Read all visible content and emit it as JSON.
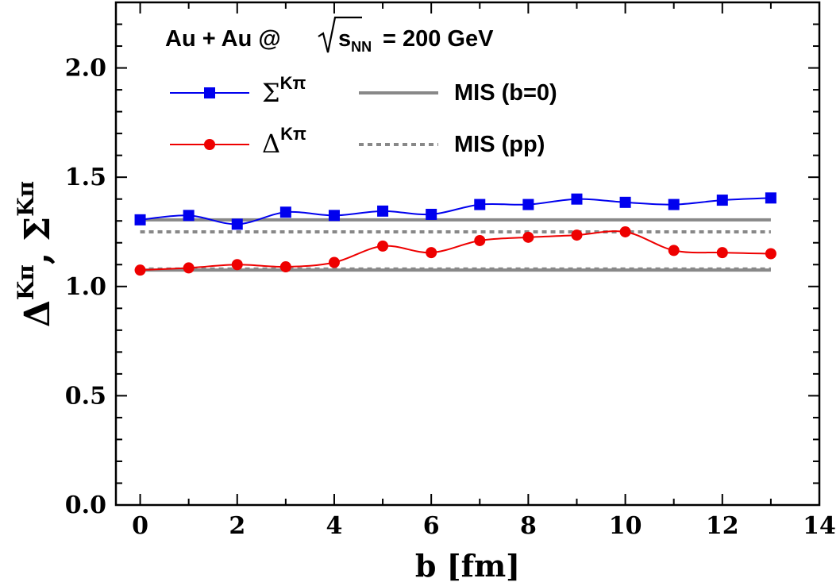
{
  "chart_data": {
    "type": "line",
    "title_parts": {
      "prefix": "Au + Au @ ",
      "sqrt_s": "s",
      "sqrt_sub": "NN",
      "suffix": " = 200 GeV"
    },
    "xlabel": "b [fm]",
    "ylabel": {
      "delta": "Δ",
      "sigma": "Σ",
      "sup": "Kπ",
      "sep": ","
    },
    "xlim": [
      -0.5,
      14
    ],
    "ylim": [
      0,
      2.3
    ],
    "x_ticks": [
      0,
      2,
      4,
      6,
      8,
      10,
      12,
      14
    ],
    "x_tick_labels": [
      "0",
      "2",
      "4",
      "6",
      "8",
      "10",
      "12",
      "14"
    ],
    "y_ticks": [
      0,
      0.5,
      1.0,
      1.5,
      2.0
    ],
    "y_tick_labels": [
      "0.0",
      "0.5",
      "1.0",
      "1.5",
      "2.0"
    ],
    "grid": false,
    "legend_position": "top",
    "series": [
      {
        "name_base": "Σ",
        "name_sup": "Kπ",
        "color": "#0000ee",
        "marker": "square",
        "x": [
          0,
          1,
          2,
          3,
          4,
          5,
          6,
          7,
          8,
          9,
          10,
          11,
          12,
          13
        ],
        "values": [
          1.305,
          1.325,
          1.285,
          1.34,
          1.325,
          1.345,
          1.33,
          1.375,
          1.375,
          1.4,
          1.385,
          1.375,
          1.395,
          1.405
        ]
      },
      {
        "name_base": "Δ",
        "name_sup": "Kπ",
        "color": "#ee0000",
        "marker": "circle",
        "x": [
          0,
          1,
          2,
          3,
          4,
          5,
          6,
          7,
          8,
          9,
          10,
          11,
          12,
          13
        ],
        "values": [
          1.075,
          1.085,
          1.1,
          1.09,
          1.11,
          1.185,
          1.155,
          1.21,
          1.225,
          1.235,
          1.25,
          1.165,
          1.155,
          1.15
        ]
      }
    ],
    "reference_lines": [
      {
        "name": "MIS (b=0)",
        "style": "solid",
        "color": "#888888",
        "values": [
          1.305,
          1.075
        ],
        "x_range": [
          0,
          13
        ]
      },
      {
        "name": "MIS (pp)",
        "style": "dotted",
        "color": "#888888",
        "values": [
          1.25,
          1.08
        ],
        "x_range": [
          0,
          13
        ]
      }
    ]
  }
}
